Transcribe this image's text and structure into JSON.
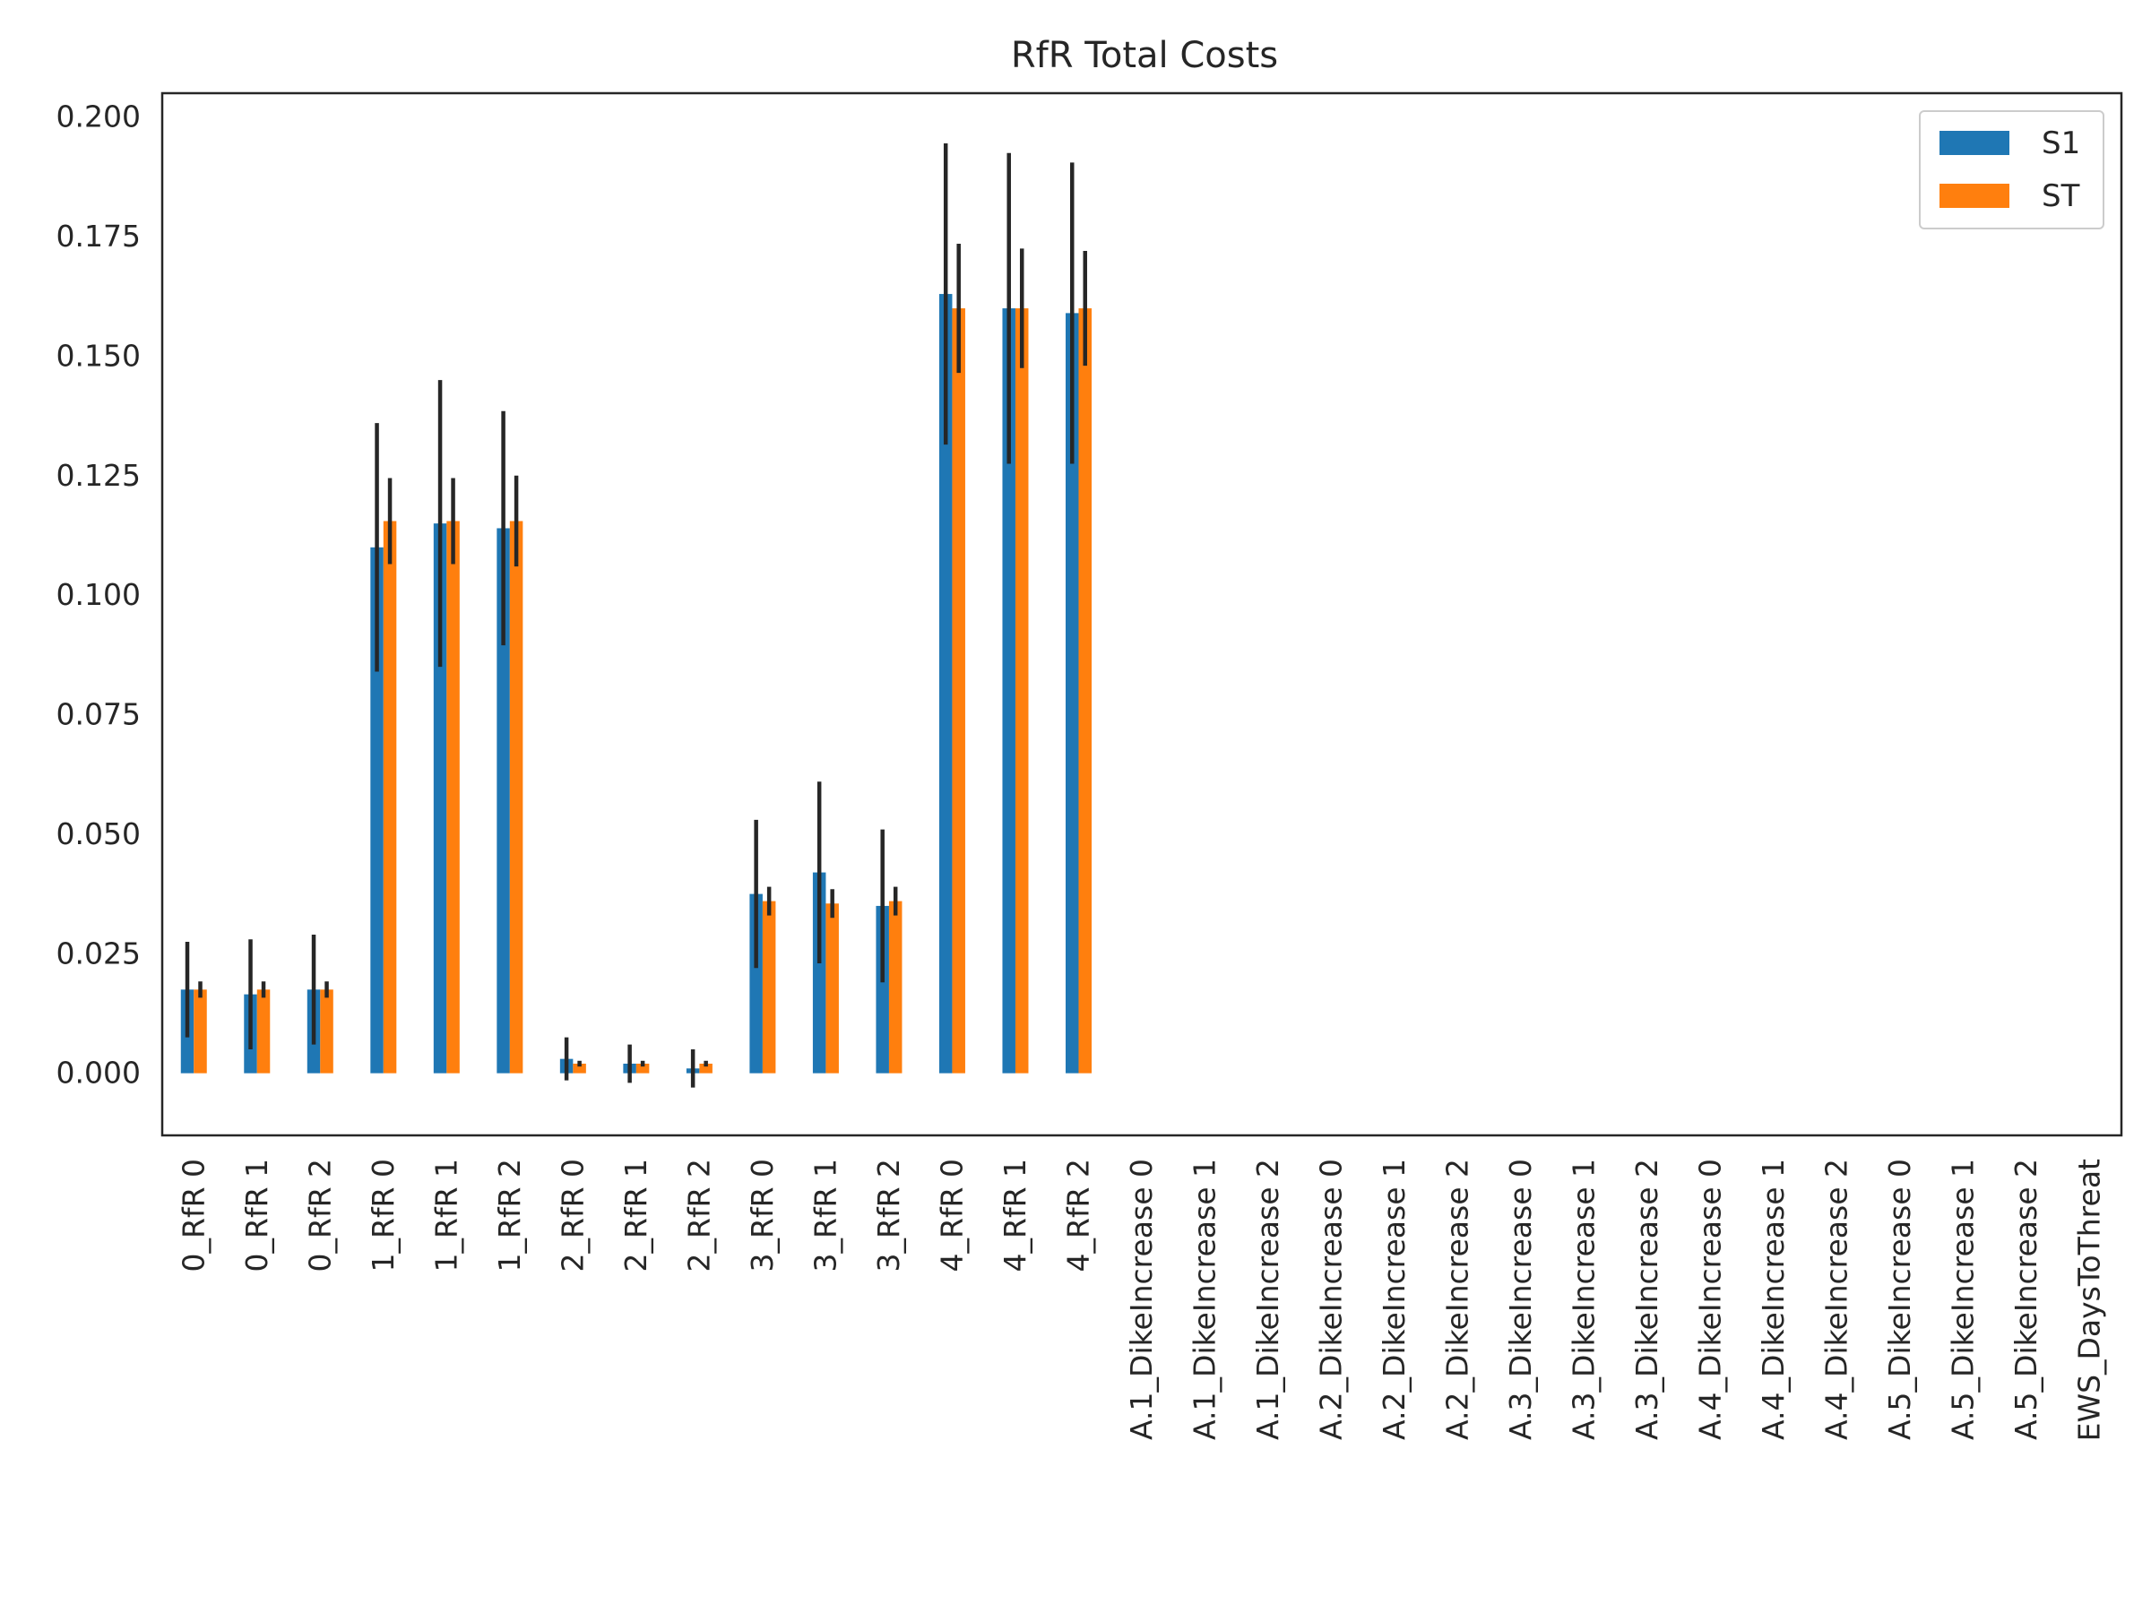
{
  "chart_data": {
    "type": "bar",
    "title": "RfR Total Costs",
    "xlabel": "",
    "ylabel": "",
    "ylim": [
      -0.013,
      0.205
    ],
    "yticks": [
      0.0,
      0.025,
      0.05,
      0.075,
      0.1,
      0.125,
      0.15,
      0.175,
      0.2
    ],
    "ytick_labels": [
      "0.000",
      "0.025",
      "0.050",
      "0.075",
      "0.100",
      "0.125",
      "0.150",
      "0.175",
      "0.200"
    ],
    "grid": false,
    "legend_position": "top-right",
    "categories": [
      "0_RfR 0",
      "0_RfR 1",
      "0_RfR 2",
      "1_RfR 0",
      "1_RfR 1",
      "1_RfR 2",
      "2_RfR 0",
      "2_RfR 1",
      "2_RfR 2",
      "3_RfR 0",
      "3_RfR 1",
      "3_RfR 2",
      "4_RfR 0",
      "4_RfR 1",
      "4_RfR 2",
      "A.1_DikeIncrease 0",
      "A.1_DikeIncrease 1",
      "A.1_DikeIncrease 2",
      "A.2_DikeIncrease 0",
      "A.2_DikeIncrease 1",
      "A.2_DikeIncrease 2",
      "A.3_DikeIncrease 0",
      "A.3_DikeIncrease 1",
      "A.3_DikeIncrease 2",
      "A.4_DikeIncrease 0",
      "A.4_DikeIncrease 1",
      "A.4_DikeIncrease 2",
      "A.5_DikeIncrease 0",
      "A.5_DikeIncrease 1",
      "A.5_DikeIncrease 2",
      "EWS_DaysToThreat"
    ],
    "series": [
      {
        "name": "S1",
        "color": "#1f77b4",
        "values": [
          0.0175,
          0.0165,
          0.0175,
          0.11,
          0.115,
          0.114,
          0.003,
          0.002,
          0.001,
          0.0375,
          0.042,
          0.035,
          0.163,
          0.16,
          0.159,
          0,
          0,
          0,
          0,
          0,
          0,
          0,
          0,
          0,
          0,
          0,
          0,
          0,
          0,
          0,
          0
        ],
        "errors": [
          0.01,
          0.0115,
          0.0115,
          0.026,
          0.03,
          0.0245,
          0.0045,
          0.004,
          0.004,
          0.0155,
          0.019,
          0.016,
          0.0315,
          0.0325,
          0.0315,
          0,
          0,
          0,
          0,
          0,
          0,
          0,
          0,
          0,
          0,
          0,
          0,
          0,
          0,
          0,
          0
        ]
      },
      {
        "name": "ST",
        "color": "#ff7f0e",
        "values": [
          0.0175,
          0.0175,
          0.0175,
          0.1155,
          0.1155,
          0.1155,
          0.002,
          0.002,
          0.002,
          0.036,
          0.0355,
          0.036,
          0.16,
          0.16,
          0.16,
          0,
          0,
          0,
          0,
          0,
          0,
          0,
          0,
          0,
          0,
          0,
          0,
          0,
          0,
          0,
          0
        ],
        "errors": [
          0.0017,
          0.0017,
          0.0017,
          0.009,
          0.009,
          0.0095,
          0.0006,
          0.0006,
          0.0006,
          0.003,
          0.003,
          0.003,
          0.0135,
          0.0125,
          0.012,
          0,
          0,
          0,
          0,
          0,
          0,
          0,
          0,
          0,
          0,
          0,
          0,
          0,
          0,
          0,
          0
        ]
      }
    ]
  }
}
